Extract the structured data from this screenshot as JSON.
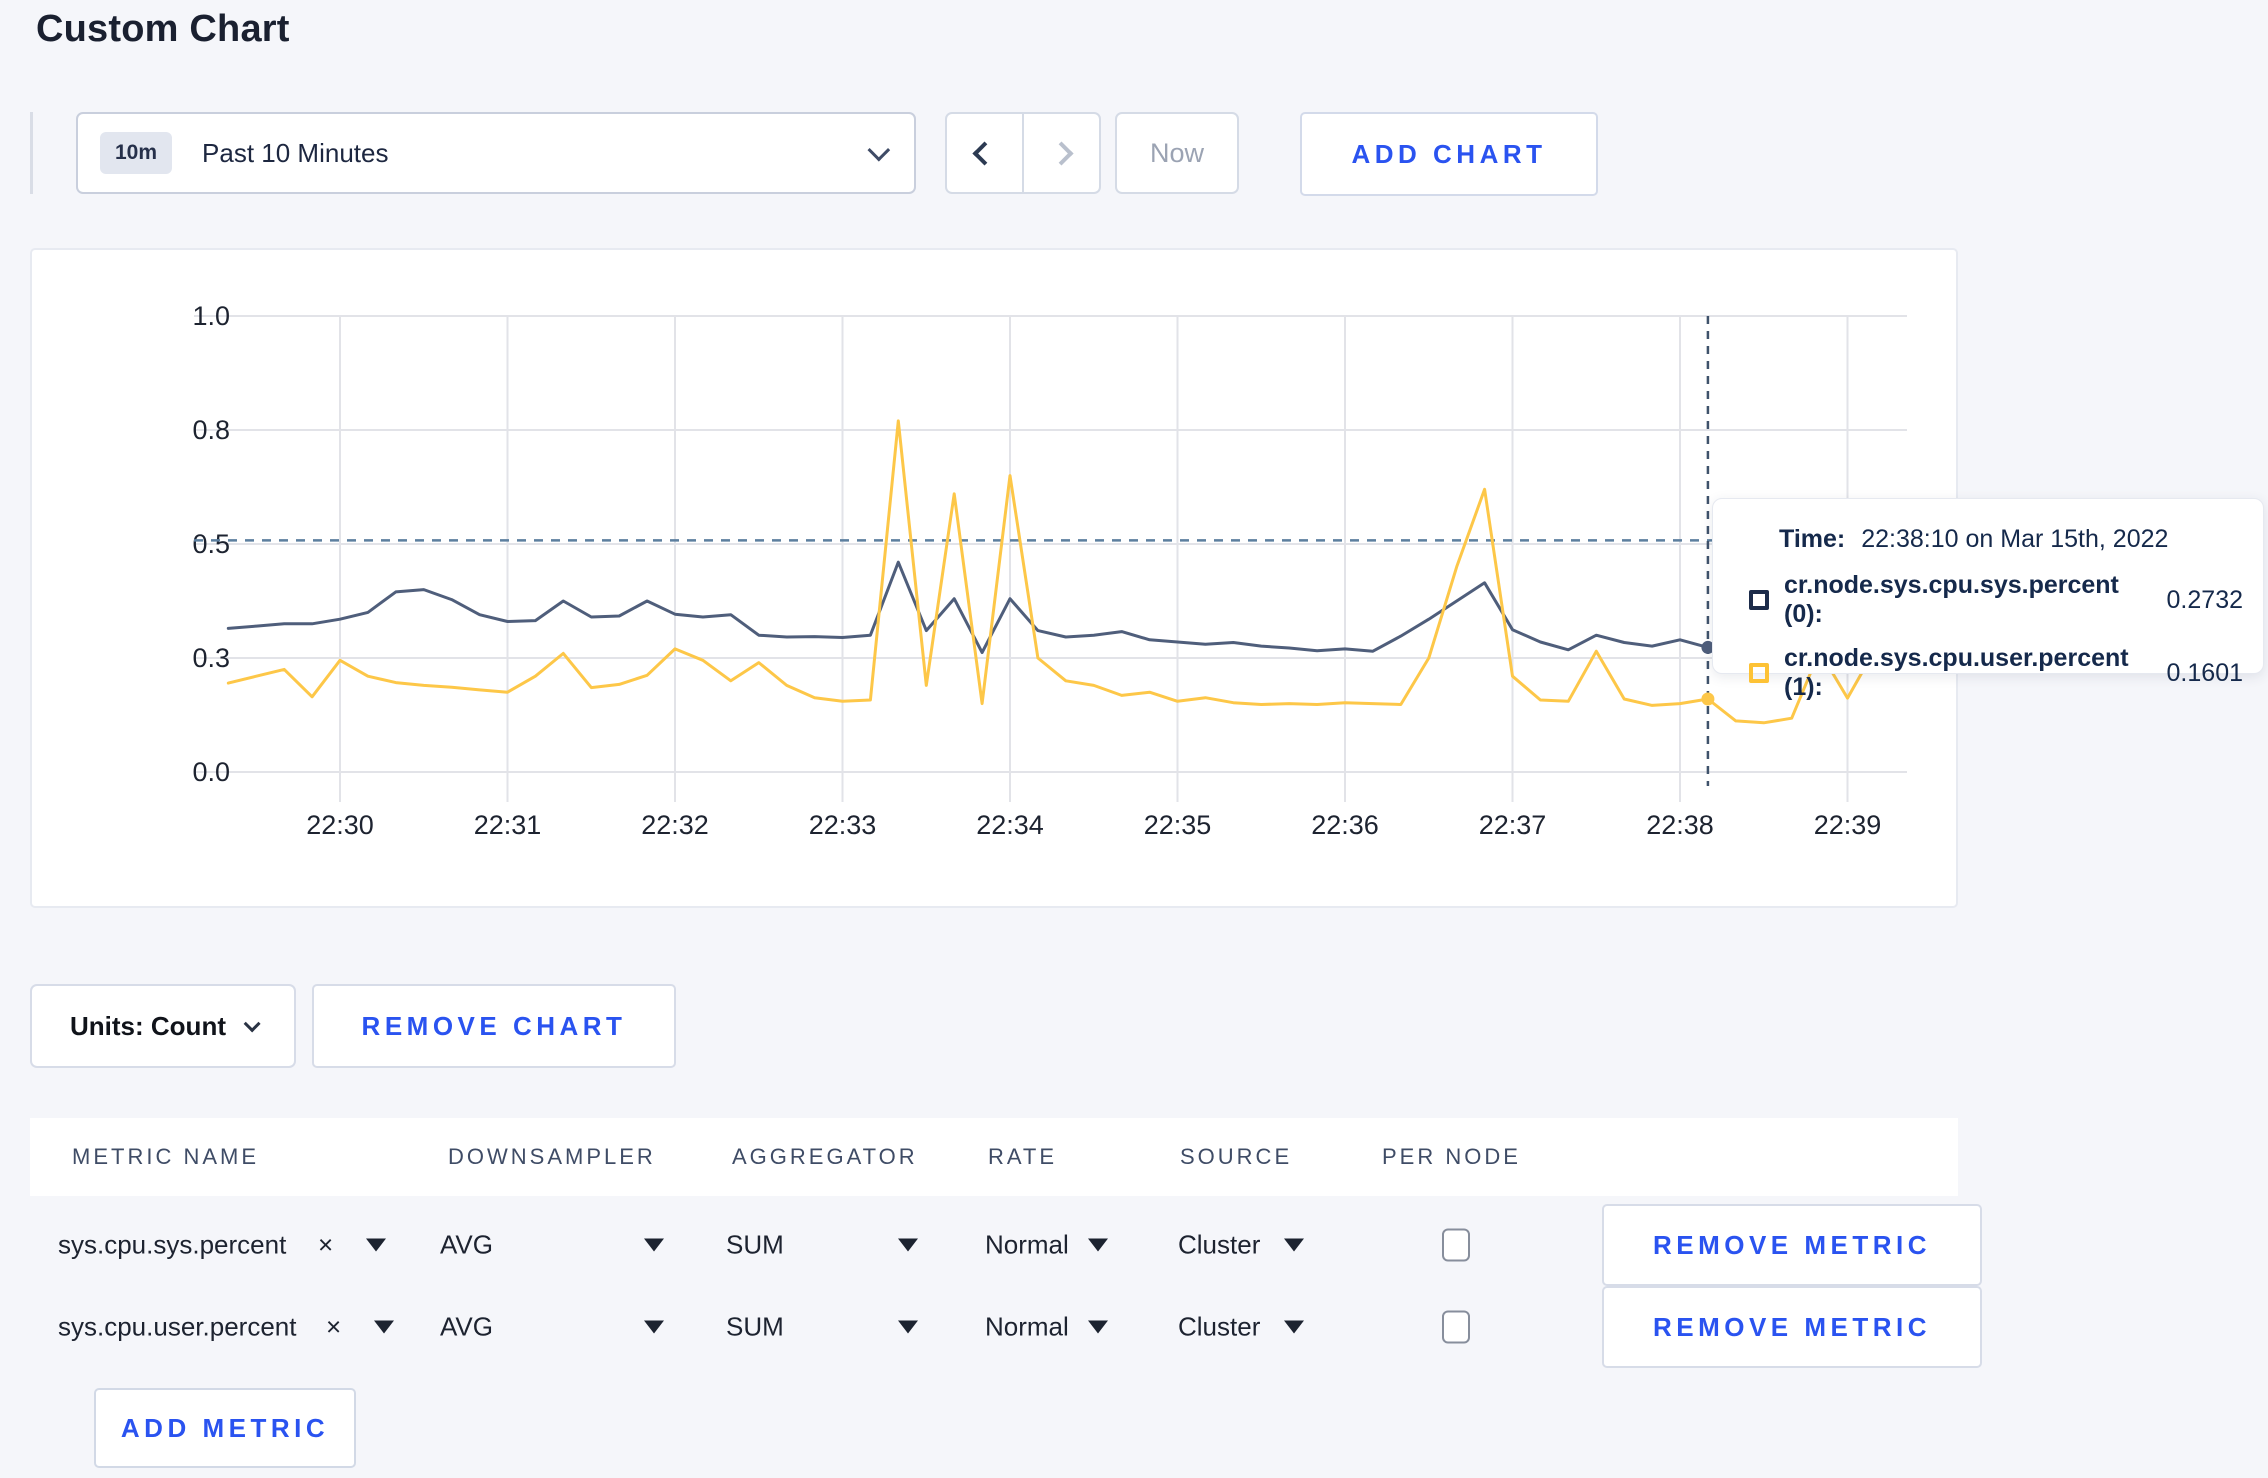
{
  "page": {
    "title": "Custom Chart"
  },
  "toolbar": {
    "time_window": {
      "badge": "10m",
      "label": "Past 10 Minutes"
    },
    "now_label": "Now",
    "add_chart_label": "ADD CHART"
  },
  "chart_data": {
    "type": "line",
    "x_start": "22:29:20",
    "x_step_seconds": 10,
    "x_tick_labels": [
      "22:30",
      "22:31",
      "22:32",
      "22:33",
      "22:34",
      "22:35",
      "22:36",
      "22:37",
      "22:38",
      "22:39"
    ],
    "y_tick_labels": [
      "0.0",
      "0.3",
      "0.5",
      "0.8",
      "1.0"
    ],
    "y_tick_values": [
      0,
      0.25,
      0.5,
      0.75,
      1.0
    ],
    "ylim": [
      0,
      1
    ],
    "grid": true,
    "legend": false,
    "guideline_y": 0.508,
    "colors": {
      "grid": "#e2e3e8",
      "axis_text": "#1d2330",
      "guideline": "#5c7f9f",
      "crosshair": "#3f526b"
    },
    "series": [
      {
        "name": "cr.node.sys.cpu.sys.percent",
        "color": "#4f5e7b",
        "values": [
          0.315,
          0.32,
          0.325,
          0.325,
          0.335,
          0.35,
          0.395,
          0.4,
          0.378,
          0.345,
          0.33,
          0.332,
          0.375,
          0.34,
          0.342,
          0.375,
          0.346,
          0.34,
          0.345,
          0.3,
          0.296,
          0.297,
          0.295,
          0.3,
          0.46,
          0.31,
          0.38,
          0.262,
          0.38,
          0.31,
          0.296,
          0.3,
          0.308,
          0.29,
          0.285,
          0.28,
          0.284,
          0.276,
          0.272,
          0.266,
          0.27,
          0.265,
          0.298,
          0.335,
          0.375,
          0.415,
          0.312,
          0.285,
          0.268,
          0.3,
          0.284,
          0.276,
          0.29,
          0.2732,
          0.282,
          0.276,
          0.272,
          0.274,
          0.272,
          0.275
        ]
      },
      {
        "name": "cr.node.sys.cpu.user.percent",
        "color": "#fdc748",
        "values": [
          0.195,
          0.21,
          0.225,
          0.165,
          0.245,
          0.21,
          0.196,
          0.19,
          0.186,
          0.18,
          0.175,
          0.21,
          0.26,
          0.185,
          0.192,
          0.212,
          0.27,
          0.245,
          0.2,
          0.24,
          0.19,
          0.163,
          0.155,
          0.158,
          0.77,
          0.19,
          0.61,
          0.15,
          0.65,
          0.25,
          0.2,
          0.19,
          0.168,
          0.175,
          0.155,
          0.163,
          0.152,
          0.148,
          0.15,
          0.148,
          0.152,
          0.15,
          0.148,
          0.25,
          0.45,
          0.62,
          0.21,
          0.158,
          0.155,
          0.265,
          0.16,
          0.146,
          0.15,
          0.1601,
          0.112,
          0.108,
          0.118,
          0.265,
          0.162,
          0.27
        ]
      }
    ],
    "crosshair": {
      "index": 53,
      "time_label": "22:38:10"
    }
  },
  "tooltip": {
    "time_label": "Time:",
    "time_value": "22:38:10 on Mar 15th, 2022",
    "series": [
      {
        "label": "cr.node.sys.cpu.sys.percent (0):",
        "value": "0.2732",
        "color": "#1c2b4a"
      },
      {
        "label": "cr.node.sys.cpu.user.percent (1):",
        "value": "0.1601",
        "color": "#fdc235"
      }
    ]
  },
  "units_bar": {
    "units_label": "Units: Count",
    "remove_chart_label": "REMOVE CHART"
  },
  "metrics_table": {
    "headers": [
      "METRIC NAME",
      "DOWNSAMPLER",
      "AGGREGATOR",
      "RATE",
      "SOURCE",
      "PER NODE"
    ],
    "rows": [
      {
        "metric": "sys.cpu.sys.percent",
        "downsampler": "AVG",
        "aggregator": "SUM",
        "rate": "Normal",
        "source": "Cluster",
        "per_node": false,
        "remove_label": "REMOVE METRIC"
      },
      {
        "metric": "sys.cpu.user.percent",
        "downsampler": "AVG",
        "aggregator": "SUM",
        "rate": "Normal",
        "source": "Cluster",
        "per_node": false,
        "remove_label": "REMOVE METRIC"
      }
    ],
    "add_metric_label": "ADD METRIC"
  },
  "icons": {
    "remove_x": "×"
  },
  "accent_color": "#2a53f0"
}
